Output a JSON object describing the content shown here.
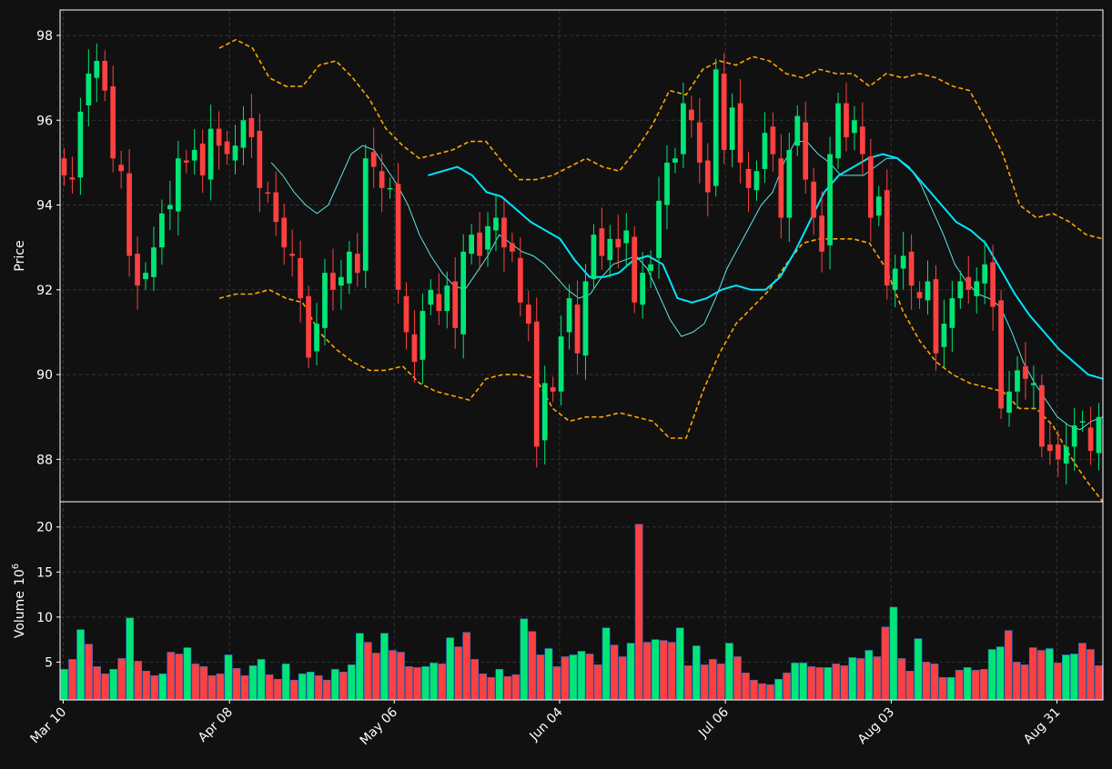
{
  "chart_data": {
    "type": "candlestick",
    "theme": {
      "background": "#111111",
      "up_color": "#00e676",
      "down_color": "#ff4040",
      "axis_color": "#ffffff",
      "grid_color": "#333333"
    },
    "price_panel": {
      "ylabel": "Price",
      "ylim": [
        87.0,
        98.6
      ],
      "yticks": [
        88,
        90,
        92,
        94,
        96,
        98
      ],
      "grid": true,
      "ohlc_approx_close": [
        94.7,
        94.6,
        96.2,
        97.1,
        97.4,
        96.7,
        95.1,
        94.8,
        92.8,
        92.1,
        92.4,
        93.0,
        93.8,
        94.0,
        95.1,
        95.0,
        95.3,
        94.7,
        95.8,
        95.4,
        95.2,
        95.4,
        96.0,
        95.6,
        94.4,
        94.3,
        93.6,
        93.0,
        92.8,
        91.8,
        90.4,
        91.2,
        92.4,
        92.0,
        92.3,
        92.9,
        92.4,
        95.1,
        94.9,
        94.4,
        94.4,
        92.0,
        91.0,
        90.3,
        91.5,
        92.0,
        91.5,
        92.1,
        91.1,
        92.9,
        93.3,
        92.8,
        93.5,
        93.7,
        93.0,
        92.9,
        91.7,
        91.2,
        88.3,
        89.8,
        89.6,
        90.9,
        91.8,
        90.5,
        92.2,
        93.3,
        92.8,
        93.2,
        93.0,
        93.4,
        91.7,
        92.4,
        92.6,
        94.1,
        95.0,
        95.1,
        96.4,
        96.0,
        95.0,
        94.3,
        97.2,
        95.3,
        96.3,
        95.0,
        94.4,
        94.8,
        95.7,
        95.2,
        93.7,
        95.3,
        96.1,
        94.6,
        93.7,
        92.9,
        95.2,
        96.4,
        95.6,
        96.0,
        95.2,
        93.7,
        94.2,
        92.1,
        92.5,
        92.8,
        92.1,
        91.8,
        92.2,
        90.5,
        91.2,
        91.8,
        92.2,
        92.0,
        92.2,
        92.6,
        91.6,
        89.2,
        89.6,
        90.1,
        89.9,
        89.8,
        88.3,
        88.2,
        88.0,
        88.3,
        88.8,
        88.9,
        88.2,
        89.0
      ],
      "sma_fast_approx": [
        null,
        null,
        null,
        null,
        null,
        null,
        null,
        null,
        null,
        null,
        null,
        null,
        95.0,
        94.7,
        94.3,
        94.0,
        93.8,
        94.0,
        94.6,
        95.2,
        95.4,
        95.3,
        94.9,
        94.5,
        94.0,
        93.3,
        92.8,
        92.4,
        92.1,
        92.0,
        92.4,
        92.8,
        93.3,
        93.1,
        92.9,
        92.8,
        92.6,
        92.3,
        92.0,
        91.8,
        91.9,
        92.3,
        92.6,
        92.7,
        92.8,
        92.5,
        91.9,
        91.3,
        90.9,
        91.0,
        91.2,
        91.8,
        92.5,
        93.0,
        93.5,
        94.0,
        94.3,
        95.0,
        95.5,
        95.5,
        95.2,
        95.0,
        94.7,
        94.7,
        94.7,
        94.9,
        95.1,
        95.1,
        94.9,
        94.5,
        93.9,
        93.3,
        92.6,
        92.2,
        91.9,
        91.8,
        91.6,
        91.0,
        90.3,
        89.8,
        89.4,
        89.0,
        88.8,
        88.7,
        88.9,
        89.0
      ],
      "sma_slow_approx": [
        null,
        null,
        null,
        null,
        null,
        null,
        null,
        null,
        null,
        null,
        null,
        null,
        null,
        null,
        null,
        null,
        null,
        null,
        null,
        null,
        94.7,
        94.8,
        94.9,
        94.7,
        94.3,
        94.2,
        93.9,
        93.6,
        93.4,
        93.2,
        92.7,
        92.3,
        92.3,
        92.4,
        92.7,
        92.8,
        92.6,
        91.8,
        91.7,
        91.8,
        92.0,
        92.1,
        92.0,
        92.0,
        92.3,
        92.9,
        93.6,
        94.3,
        94.7,
        94.9,
        95.1,
        95.2,
        95.1,
        94.8,
        94.4,
        94.0,
        93.6,
        93.4,
        93.1,
        92.5,
        91.9,
        91.4,
        91.0,
        90.6,
        90.3,
        90.0,
        89.9
      ]
    },
    "bollinger_bands_approx": {
      "upper": [
        97.7,
        97.9,
        97.7,
        97.0,
        96.8,
        96.8,
        97.3,
        97.4,
        97.0,
        96.5,
        95.8,
        95.4,
        95.1,
        95.2,
        95.3,
        95.5,
        95.5,
        95.0,
        94.6,
        94.6,
        94.7,
        94.9,
        95.1,
        94.9,
        94.8,
        95.3,
        95.9,
        96.7,
        96.6,
        97.2,
        97.4,
        97.3,
        97.5,
        97.4,
        97.1,
        97.0,
        97.2,
        97.1,
        97.1,
        96.8,
        97.1,
        97.0,
        97.1,
        97.0,
        96.8,
        96.7,
        96.0,
        95.2,
        94.0,
        93.7,
        93.8,
        93.6,
        93.3,
        93.2
      ],
      "lower": [
        91.8,
        91.9,
        91.9,
        92.0,
        91.8,
        91.7,
        91.0,
        90.6,
        90.3,
        90.1,
        90.1,
        90.2,
        89.8,
        89.6,
        89.5,
        89.4,
        89.9,
        90.0,
        90.0,
        89.9,
        89.2,
        88.9,
        89.0,
        89.0,
        89.1,
        89.0,
        88.9,
        88.5,
        88.5,
        89.6,
        90.5,
        91.2,
        91.6,
        92.0,
        92.6,
        93.1,
        93.2,
        93.2,
        93.2,
        93.1,
        92.5,
        91.5,
        90.8,
        90.3,
        90.0,
        89.8,
        89.7,
        89.6,
        89.2,
        89.2,
        88.8,
        88.1,
        87.5,
        87.0
      ]
    },
    "volume_panel": {
      "ylabel": "Volume",
      "ylabel_exponent": "10",
      "ylabel_exponent_power": "6",
      "ylim": [
        0.8,
        22.8
      ],
      "yticks": [
        5,
        10,
        15,
        20
      ],
      "grid": true,
      "values_millions": [
        4.2,
        5.3,
        8.6,
        7.0,
        4.5,
        3.7,
        4.2,
        5.4,
        9.9,
        5.1,
        4.0,
        3.5,
        3.7,
        6.1,
        5.9,
        6.6,
        4.8,
        4.5,
        3.5,
        3.7,
        5.8,
        4.3,
        3.5,
        4.6,
        5.3,
        3.6,
        3.1,
        4.8,
        3.0,
        3.7,
        3.9,
        3.5,
        3.0,
        4.2,
        3.9,
        4.7,
        8.2,
        7.2,
        6.0,
        8.2,
        6.3,
        6.1,
        4.5,
        4.4,
        4.5,
        4.9,
        4.8,
        7.7,
        6.7,
        8.3,
        5.3,
        3.7,
        3.3,
        4.2,
        3.4,
        3.6,
        9.8,
        8.4,
        5.8,
        6.5,
        4.5,
        5.6,
        5.8,
        6.2,
        5.9,
        4.7,
        8.8,
        6.9,
        5.6,
        7.1,
        20.3,
        7.2,
        7.5,
        7.4,
        7.2,
        8.8,
        4.6,
        6.8,
        4.7,
        5.3,
        4.8,
        7.1,
        5.6,
        3.8,
        3.0,
        2.6,
        2.5,
        3.1,
        3.8,
        4.9,
        4.9,
        4.5,
        4.4,
        4.4,
        4.8,
        4.6,
        5.5,
        5.4,
        6.3,
        5.6,
        8.9,
        11.1,
        5.4,
        4.0,
        7.6,
        5.0,
        4.8,
        3.3,
        3.3,
        4.1,
        4.4,
        4.1,
        4.2,
        6.4,
        6.7,
        8.5,
        5.0,
        4.7,
        6.6,
        6.3,
        6.5,
        4.9,
        5.8,
        5.9,
        7.1,
        6.4,
        4.6
      ]
    },
    "xticks": [
      "Mar 10",
      "Apr 08",
      "May 06",
      "Jun 04",
      "Jul 06",
      "Aug 03",
      "Aug 31"
    ]
  }
}
